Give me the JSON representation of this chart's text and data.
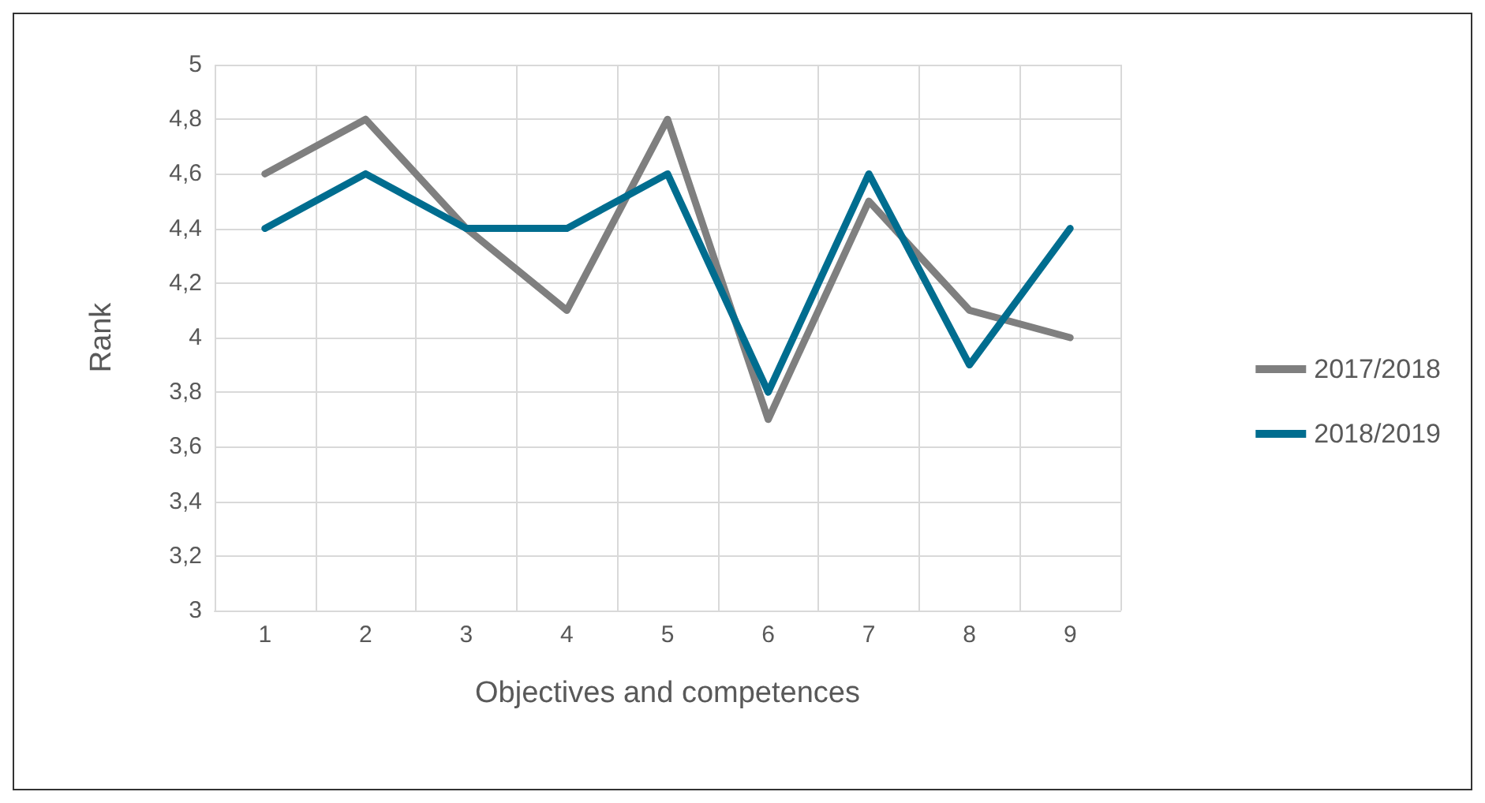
{
  "chart_data": {
    "type": "line",
    "xlabel": "Objectives and competences",
    "ylabel": "Rank",
    "categories": [
      "1",
      "2",
      "3",
      "4",
      "5",
      "6",
      "7",
      "8",
      "9"
    ],
    "series": [
      {
        "name": "2017/2018",
        "color": "#7f7f7f",
        "values": [
          4.6,
          4.8,
          4.4,
          4.1,
          4.8,
          3.7,
          4.5,
          4.1,
          4.0
        ]
      },
      {
        "name": "2018/2019",
        "color": "#006d8f",
        "values": [
          4.4,
          4.6,
          4.4,
          4.4,
          4.6,
          3.8,
          4.6,
          3.9,
          4.4
        ]
      }
    ],
    "ylim": [
      3,
      5
    ],
    "yticks": [
      {
        "value": 3,
        "label": "3"
      },
      {
        "value": 3.2,
        "label": "3,2"
      },
      {
        "value": 3.4,
        "label": "3,4"
      },
      {
        "value": 3.6,
        "label": "3,6"
      },
      {
        "value": 3.8,
        "label": "3,8"
      },
      {
        "value": 4,
        "label": "4"
      },
      {
        "value": 4.2,
        "label": "4,2"
      },
      {
        "value": 4.4,
        "label": "4,4"
      },
      {
        "value": 4.6,
        "label": "4,6"
      },
      {
        "value": 4.8,
        "label": "4,8"
      },
      {
        "value": 5,
        "label": "5"
      }
    ],
    "grid": true,
    "legend": "right",
    "marker": "none",
    "line_style": "solid"
  }
}
